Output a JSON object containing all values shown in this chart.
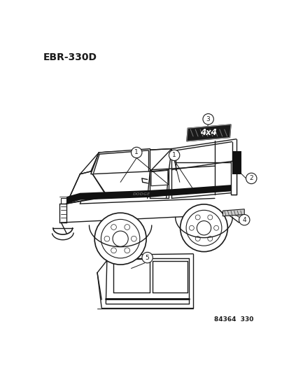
{
  "title": "EBR-330D",
  "footer": "84364  330",
  "bg_color": "#ffffff",
  "text_color": "#1a1a1a",
  "title_fontsize": 10,
  "footer_fontsize": 6.5,
  "line_color": "#1a1a1a",
  "stripe_color": "#111111",
  "lw_main": 1.0,
  "truck_scale": 1.0
}
